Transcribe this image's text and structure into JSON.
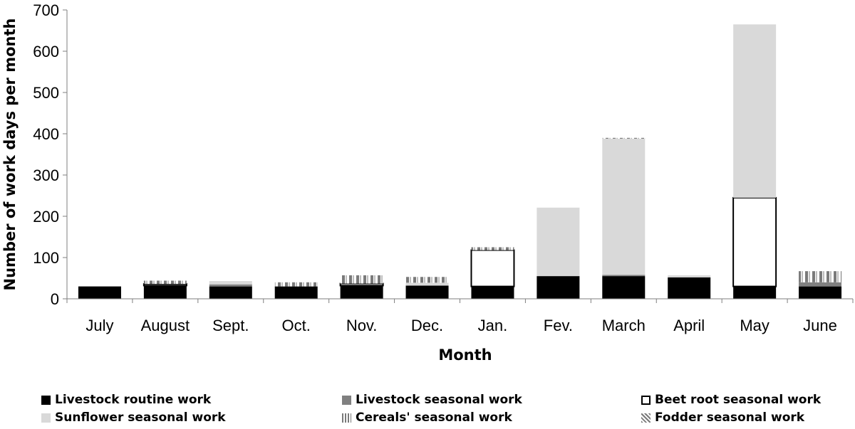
{
  "chart_data": {
    "type": "bar",
    "stacked": true,
    "xlabel": "Month",
    "ylabel": "Number of work days per month",
    "ylim": [
      0,
      700
    ],
    "yticks": [
      0,
      100,
      200,
      300,
      400,
      500,
      600,
      700
    ],
    "grid": false,
    "legend_position": "bottom",
    "categories": [
      "July",
      "August",
      "Sept.",
      "Oct.",
      "Nov.",
      "Dec.",
      "Jan.",
      "Fev.",
      "March",
      "April",
      "May",
      "June"
    ],
    "series": [
      {
        "name": "Livestock routine work",
        "color": "#000000",
        "pattern": "solid",
        "values": [
          30,
          32,
          30,
          30,
          32,
          32,
          30,
          55,
          55,
          52,
          30,
          30
        ]
      },
      {
        "name": "Livestock seasonal work",
        "color": "#808080",
        "pattern": "solid",
        "values": [
          0,
          0,
          5,
          0,
          0,
          0,
          0,
          0,
          3,
          0,
          0,
          10
        ]
      },
      {
        "name": "Beet root seasonal work",
        "color": "#ffffff",
        "pattern": "outline",
        "values": [
          0,
          4,
          0,
          0,
          5,
          0,
          88,
          0,
          0,
          0,
          215,
          0
        ]
      },
      {
        "name": "Sunflower seasonal work",
        "color": "#d9d9d9",
        "pattern": "solid",
        "values": [
          0,
          0,
          8,
          0,
          0,
          7,
          0,
          166,
          330,
          5,
          420,
          0
        ]
      },
      {
        "name": "Cereals' seasonal work",
        "color": "#8c8c8c",
        "pattern": "vertical-stripes",
        "values": [
          0,
          8,
          0,
          10,
          20,
          14,
          7,
          0,
          2,
          0,
          0,
          27
        ]
      },
      {
        "name": "Fodder seasonal work",
        "color": "#8c8c8c",
        "pattern": "diagonal-stripes",
        "values": [
          0,
          0,
          0,
          0,
          0,
          0,
          0,
          0,
          0,
          0,
          0,
          0
        ]
      }
    ]
  }
}
